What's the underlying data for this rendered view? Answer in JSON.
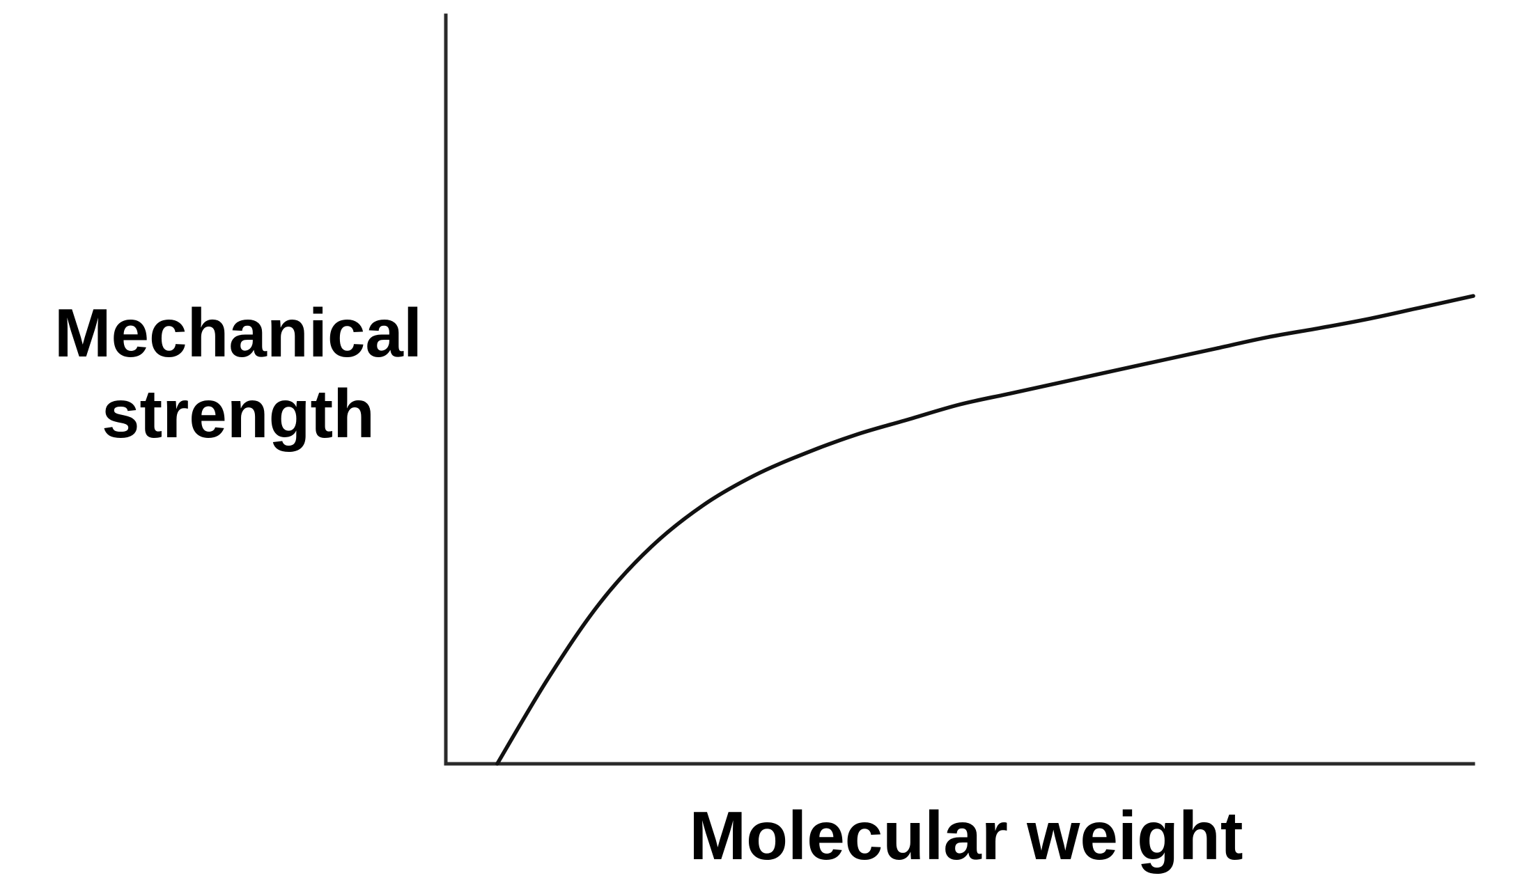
{
  "chart_data": {
    "type": "line",
    "title": "",
    "xlabel": "Molecular weight",
    "ylabel": [
      "Mechanical",
      "strength"
    ],
    "xlim": [
      0,
      100
    ],
    "ylim": [
      0,
      100
    ],
    "grid": false,
    "x_ticks": false,
    "y_ticks": false,
    "series": [
      {
        "line_color": "#111111",
        "x": [
          5,
          10,
          15,
          20,
          25,
          30,
          35,
          40,
          45,
          50,
          55,
          60,
          65,
          70,
          75,
          80,
          85,
          90,
          95,
          100
        ],
        "y": [
          0,
          11.5,
          21.5,
          29,
          34.5,
          38.5,
          41.5,
          44,
          46,
          48,
          49.5,
          51,
          52.5,
          54,
          55.5,
          57,
          58.2,
          59.5,
          61,
          62.5
        ]
      }
    ]
  }
}
